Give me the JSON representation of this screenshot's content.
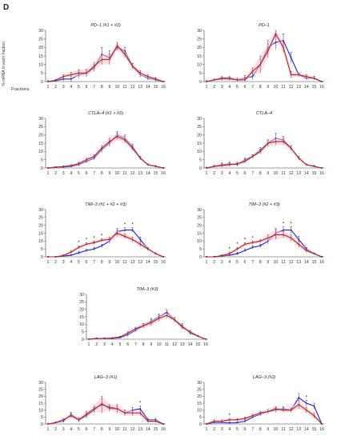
{
  "panel_letter": "D",
  "ylabel": "% mRNA in each fraction",
  "xlabel": "Fractions",
  "chart_data": [
    {
      "type": "line",
      "title": "PD–1 (#1 + #2)",
      "x": [
        1,
        2,
        3,
        4,
        5,
        6,
        7,
        8,
        9,
        10,
        11,
        12,
        13,
        14,
        15,
        16
      ],
      "ylim": [
        0,
        30
      ],
      "yticks": [
        0,
        5,
        10,
        15,
        20,
        25,
        30
      ],
      "series": [
        {
          "color": "#1f1fd6",
          "values": [
            0,
            0.5,
            1.5,
            1.5,
            4,
            5,
            8,
            16,
            14,
            20,
            18,
            9,
            4,
            2,
            1,
            0
          ],
          "errors": [
            0.5,
            0.5,
            1,
            1.5,
            2,
            2,
            2,
            4,
            4,
            2,
            2,
            1.5,
            1.5,
            1,
            1,
            0.3
          ]
        },
        {
          "color": "#b22222",
          "values": [
            0,
            0.8,
            3,
            4,
            5,
            5,
            9,
            13,
            13,
            21,
            16,
            9,
            5,
            3,
            1.5,
            0
          ],
          "errors": [
            0.5,
            0.5,
            1,
            1.5,
            2,
            2,
            2,
            3,
            3,
            2,
            2,
            1.5,
            1.5,
            1,
            1,
            0.3
          ]
        }
      ],
      "asterisks": []
    },
    {
      "type": "line",
      "title": "PD–1",
      "x": [
        1,
        2,
        3,
        4,
        5,
        6,
        7,
        8,
        9,
        10,
        11,
        12,
        13,
        14,
        15,
        16
      ],
      "ylim": [
        0,
        30
      ],
      "yticks": [
        0,
        5,
        10,
        15,
        20,
        25,
        30
      ],
      "series": [
        {
          "color": "#1f1fd6",
          "values": [
            0,
            1,
            1.5,
            1.5,
            1,
            2,
            3,
            10,
            20,
            23,
            24,
            14,
            4,
            2,
            2,
            0
          ],
          "errors": [
            0.5,
            0.5,
            1,
            1,
            1,
            1.5,
            2,
            3,
            4,
            4,
            4,
            3,
            1,
            1,
            1,
            0.3
          ]
        },
        {
          "color": "#b22222",
          "values": [
            0,
            1,
            2,
            2,
            1,
            1,
            6,
            10,
            18,
            28,
            20,
            4,
            4,
            3,
            2,
            0
          ],
          "errors": [
            0.5,
            0.5,
            1,
            1,
            1,
            1.5,
            2,
            5,
            4,
            2,
            3,
            2,
            1,
            1,
            1,
            0.3
          ]
        }
      ],
      "asterisks": []
    },
    {
      "type": "line",
      "title": "CTLA–4 (#1 + #2)",
      "x": [
        1,
        2,
        3,
        4,
        5,
        6,
        7,
        8,
        9,
        10,
        11,
        12,
        13,
        14,
        15,
        16
      ],
      "ylim": [
        0,
        30
      ],
      "yticks": [
        0,
        5,
        10,
        15,
        20,
        25,
        30
      ],
      "series": [
        {
          "color": "#1f1fd6",
          "values": [
            0,
            0.5,
            0.5,
            1,
            2,
            4,
            6,
            11,
            15,
            20,
            18,
            13,
            6,
            2,
            1,
            0
          ],
          "errors": [
            0.3,
            0.3,
            0.5,
            0.5,
            1,
            1,
            1,
            1.5,
            2,
            2,
            2,
            1.5,
            1,
            0.5,
            0.5,
            0.3
          ]
        },
        {
          "color": "#b22222",
          "values": [
            0,
            0.5,
            0.8,
            1.5,
            2.5,
            5,
            7,
            12,
            16,
            19,
            17,
            12,
            6,
            2,
            1,
            0
          ],
          "errors": [
            0.3,
            0.3,
            0.5,
            0.5,
            1,
            1,
            1,
            1.5,
            2,
            2,
            2,
            1.5,
            1,
            0.5,
            0.5,
            0.3
          ]
        }
      ],
      "asterisks": []
    },
    {
      "type": "line",
      "title": "CTLA–4",
      "x": [
        1,
        2,
        3,
        4,
        5,
        6,
        7,
        8,
        9,
        10,
        11,
        12,
        13,
        14,
        15,
        16
      ],
      "ylim": [
        0,
        30
      ],
      "yticks": [
        0,
        5,
        10,
        15,
        20,
        25,
        30
      ],
      "series": [
        {
          "color": "#1f1fd6",
          "values": [
            0,
            1,
            2,
            2.5,
            2,
            5,
            7,
            11,
            15,
            18,
            17,
            12,
            6,
            2,
            1,
            0
          ],
          "errors": [
            0.5,
            0.5,
            1,
            1,
            1,
            1,
            1,
            1.5,
            2,
            3,
            2,
            1.5,
            1,
            0.5,
            0.5,
            0.3
          ]
        },
        {
          "color": "#b22222",
          "values": [
            0,
            1,
            1.5,
            2,
            2.5,
            4,
            7,
            10,
            15,
            16,
            16,
            12,
            6,
            2,
            1,
            0
          ],
          "errors": [
            0.5,
            0.5,
            1,
            1,
            1,
            1,
            1,
            1.5,
            2,
            2,
            2,
            1.5,
            1,
            0.5,
            0.5,
            0.3
          ]
        }
      ],
      "asterisks": []
    },
    {
      "type": "line",
      "title": "TIM–3 (#1 + #2 + #3)",
      "x": [
        1,
        2,
        3,
        4,
        5,
        6,
        7,
        8,
        9,
        10,
        11,
        12,
        13,
        14,
        15,
        16
      ],
      "ylim": [
        0,
        30
      ],
      "yticks": [
        0,
        5,
        10,
        15,
        20,
        25,
        30
      ],
      "series": [
        {
          "color": "#1f1fd6",
          "values": [
            0,
            0,
            0.5,
            1,
            2.5,
            4,
            5,
            7,
            10,
            16,
            17,
            17,
            11,
            5,
            2,
            0
          ],
          "errors": [
            0.3,
            0.3,
            0.5,
            0.5,
            1,
            1,
            1,
            1,
            1.5,
            2,
            1.5,
            1.5,
            1.5,
            1,
            0.5,
            0.3
          ]
        },
        {
          "color": "#b22222",
          "values": [
            0,
            0,
            0.8,
            3,
            6,
            8,
            9,
            10.5,
            11,
            15,
            13,
            11,
            8,
            5,
            2,
            0
          ],
          "errors": [
            0.3,
            0.3,
            0.5,
            1,
            1,
            1,
            1,
            1,
            1.5,
            2,
            1.5,
            1.5,
            1.5,
            1,
            0.5,
            0.3
          ]
        }
      ],
      "asterisks": [
        5,
        6,
        7,
        8,
        11,
        12
      ]
    },
    {
      "type": "line",
      "title": "TIM–3 (#2 + #3)",
      "x": [
        1,
        2,
        3,
        4,
        5,
        6,
        7,
        8,
        9,
        10,
        11,
        12,
        13,
        14,
        15,
        16
      ],
      "ylim": [
        0,
        30
      ],
      "yticks": [
        0,
        5,
        10,
        15,
        20,
        25,
        30
      ],
      "series": [
        {
          "color": "#1f1fd6",
          "values": [
            0,
            0,
            0.5,
            1,
            2,
            4,
            6,
            7,
            10,
            15,
            17,
            17,
            11,
            5,
            2,
            0
          ],
          "errors": [
            0.3,
            0.3,
            0.5,
            0.5,
            1,
            1,
            1,
            1,
            2,
            3,
            2,
            2,
            2,
            1,
            0.5,
            0.3
          ]
        },
        {
          "color": "#b22222",
          "values": [
            0,
            0,
            0.8,
            2,
            5,
            8,
            9,
            10,
            12,
            14,
            14,
            12,
            8,
            4,
            2,
            0
          ],
          "errors": [
            0.3,
            0.3,
            0.5,
            1,
            1,
            1,
            1,
            1,
            2,
            3,
            2,
            2,
            2,
            1,
            0.5,
            0.3
          ]
        }
      ],
      "asterisks": [
        4,
        5,
        6,
        7,
        11,
        12
      ]
    },
    {
      "type": "line",
      "title": "TIM–3 (#3)",
      "x": [
        1,
        2,
        3,
        4,
        5,
        6,
        7,
        8,
        9,
        10,
        11,
        12,
        13,
        14,
        15,
        16
      ],
      "ylim": [
        0,
        30
      ],
      "yticks": [
        0,
        5,
        10,
        15,
        20,
        25,
        30
      ],
      "series": [
        {
          "color": "#1f1fd6",
          "values": [
            0,
            0.5,
            0.5,
            0.5,
            1,
            3,
            6,
            9,
            12,
            15,
            18,
            13,
            9,
            4,
            2,
            0
          ],
          "errors": [
            0.3,
            0.3,
            0.3,
            0.3,
            0.5,
            1,
            1,
            1.5,
            2,
            2,
            1.5,
            1.5,
            1.5,
            1,
            0.5,
            0.3
          ]
        },
        {
          "color": "#b22222",
          "values": [
            0,
            0.5,
            0.5,
            0.8,
            1.5,
            4,
            7,
            9,
            11,
            14,
            16,
            13,
            8,
            5,
            2,
            0
          ],
          "errors": [
            0.3,
            0.3,
            0.3,
            0.3,
            0.5,
            1,
            1,
            1.5,
            2,
            2,
            1.5,
            1.5,
            1.5,
            1,
            0.5,
            0.3
          ]
        }
      ],
      "asterisks": []
    },
    {
      "type": "line",
      "title": "LAG–3 (#1)",
      "x": [
        1,
        2,
        3,
        4,
        5,
        6,
        7,
        8,
        9,
        10,
        11,
        12,
        13,
        14,
        15,
        16
      ],
      "ylim": [
        0,
        30
      ],
      "yticks": [
        0,
        5,
        10,
        15,
        20,
        25,
        30
      ],
      "series": [
        {
          "color": "#1f1fd6",
          "values": [
            0,
            1,
            2,
            7,
            3,
            6,
            10,
            15,
            11,
            11,
            8,
            10,
            11,
            3,
            3,
            0
          ],
          "errors": [
            0.5,
            0.5,
            1,
            1.5,
            1.5,
            2,
            2,
            3,
            2,
            2,
            2,
            2,
            2,
            1,
            1,
            0.3
          ]
        },
        {
          "color": "#b22222",
          "values": [
            0,
            1,
            3,
            6,
            3,
            7,
            11,
            14,
            12,
            11,
            8,
            8,
            8,
            2,
            2,
            0
          ],
          "errors": [
            0.5,
            0.5,
            1,
            1.5,
            1.5,
            2,
            2,
            6,
            2,
            3,
            2,
            2,
            2,
            1,
            1,
            0.3
          ]
        }
      ],
      "asterisks": [
        13
      ]
    },
    {
      "type": "line",
      "title": "LAG–3 (#2)",
      "x": [
        1,
        2,
        3,
        4,
        5,
        6,
        7,
        8,
        9,
        10,
        11,
        12,
        13,
        14,
        15,
        16
      ],
      "ylim": [
        0,
        30
      ],
      "yticks": [
        0,
        5,
        10,
        15,
        20,
        25,
        30
      ],
      "series": [
        {
          "color": "#1f1fd6",
          "values": [
            0,
            1,
            1,
            0.8,
            1,
            2,
            5,
            7,
            9,
            10,
            11,
            10,
            19,
            15,
            13,
            0
          ],
          "errors": [
            0.5,
            0.5,
            0.5,
            0.5,
            0.5,
            1,
            1,
            1,
            1.5,
            1.5,
            1.5,
            1.5,
            3,
            2,
            2,
            0.3
          ]
        },
        {
          "color": "#b22222",
          "values": [
            0,
            2,
            2,
            3,
            3,
            4,
            6,
            8,
            9,
            11,
            10,
            10,
            14,
            10,
            6,
            0
          ],
          "errors": [
            0.5,
            1,
            1,
            1,
            1,
            1,
            1,
            1,
            1.5,
            1.5,
            1.5,
            1.5,
            3,
            2,
            2,
            0.3
          ]
        }
      ],
      "asterisks": [
        4,
        14
      ]
    }
  ]
}
